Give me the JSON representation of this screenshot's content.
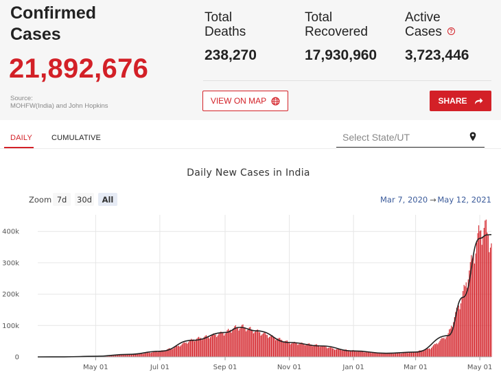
{
  "summary": {
    "confirmed_label": "Confirmed Cases",
    "confirmed_value": "21,892,676",
    "source_line1": "Source:",
    "source_line2": "MOHFW(India) and John Hopkins",
    "deaths_label_1": "Total",
    "deaths_label_2": "Deaths",
    "deaths_value": "238,270",
    "recovered_label_1": "Total",
    "recovered_label_2": "Recovered",
    "recovered_value": "17,930,960",
    "active_label_1": "Active",
    "active_label_2": "Cases",
    "active_value": "3,723,446",
    "info_symbol": "?"
  },
  "buttons": {
    "map_label": "VIEW ON MAP",
    "share_label": "SHARE"
  },
  "tabs": [
    {
      "label": "DAILY",
      "active": true
    },
    {
      "label": "CUMULATIVE",
      "active": false
    }
  ],
  "state_select": {
    "placeholder": "Select State/UT"
  },
  "colors": {
    "accent": "#d32027",
    "bar": "#d32027",
    "line": "#222222"
  },
  "icons": {
    "map": "globe-icon",
    "share": "share-arrow-icon",
    "state": "location-pin-icon",
    "info": "info-icon"
  },
  "chart_data": {
    "type": "bar",
    "title": "Daily New Cases in India",
    "zoom_label": "Zoom",
    "zoom_options": [
      "7d",
      "30d",
      "All"
    ],
    "zoom_selected": "All",
    "range_start": "Mar 7, 2020",
    "range_arrow": "→",
    "range_end": "May 12, 2021",
    "xlabel": "",
    "ylabel": "",
    "ylim": [
      0,
      430000
    ],
    "y_ticks": [
      0,
      100000,
      200000,
      300000,
      400000
    ],
    "y_tick_labels": [
      "0",
      "100k",
      "200k",
      "300k",
      "400k"
    ],
    "x_ticks": [
      "2020-05-01",
      "2020-07-01",
      "2020-09-01",
      "2020-11-01",
      "2021-01-01",
      "2021-03-01",
      "2021-05-01"
    ],
    "x_tick_labels": [
      "May 01",
      "Jul 01",
      "Sep 01",
      "Nov 01",
      "Jan 01",
      "Mar 01",
      "May 01"
    ],
    "x_range": [
      "2020-03-07",
      "2021-05-12"
    ],
    "grid": true,
    "legend": "none",
    "series": [
      {
        "type": "bar",
        "daily_values_weekly_samples": [
          {
            "date": "2020-03-07",
            "value": 5
          },
          {
            "date": "2020-03-21",
            "value": 100
          },
          {
            "date": "2020-04-04",
            "value": 500
          },
          {
            "date": "2020-04-18",
            "value": 1200
          },
          {
            "date": "2020-05-01",
            "value": 2000
          },
          {
            "date": "2020-05-15",
            "value": 4000
          },
          {
            "date": "2020-06-01",
            "value": 8000
          },
          {
            "date": "2020-06-15",
            "value": 11000
          },
          {
            "date": "2020-07-01",
            "value": 18000
          },
          {
            "date": "2020-07-15",
            "value": 30000
          },
          {
            "date": "2020-08-01",
            "value": 55000
          },
          {
            "date": "2020-08-15",
            "value": 65000
          },
          {
            "date": "2020-09-01",
            "value": 78000
          },
          {
            "date": "2020-09-10",
            "value": 93000
          },
          {
            "date": "2020-09-17",
            "value": 97000
          },
          {
            "date": "2020-10-01",
            "value": 82000
          },
          {
            "date": "2020-10-15",
            "value": 65000
          },
          {
            "date": "2020-11-01",
            "value": 46000
          },
          {
            "date": "2020-11-15",
            "value": 42000
          },
          {
            "date": "2020-12-01",
            "value": 36000
          },
          {
            "date": "2020-12-15",
            "value": 25000
          },
          {
            "date": "2021-01-01",
            "value": 20000
          },
          {
            "date": "2021-01-15",
            "value": 15000
          },
          {
            "date": "2021-02-01",
            "value": 11000
          },
          {
            "date": "2021-02-15",
            "value": 12000
          },
          {
            "date": "2021-03-01",
            "value": 16000
          },
          {
            "date": "2021-03-15",
            "value": 28000
          },
          {
            "date": "2021-04-01",
            "value": 72000
          },
          {
            "date": "2021-04-15",
            "value": 200000
          },
          {
            "date": "2021-05-01",
            "value": 401000
          },
          {
            "date": "2021-05-06",
            "value": 414000
          },
          {
            "date": "2021-05-12",
            "value": 362000
          }
        ]
      },
      {
        "type": "line",
        "smoothed_values": [
          {
            "date": "2020-03-07",
            "value": 0
          },
          {
            "date": "2020-04-01",
            "value": 300
          },
          {
            "date": "2020-05-01",
            "value": 2000
          },
          {
            "date": "2020-06-01",
            "value": 8000
          },
          {
            "date": "2020-07-01",
            "value": 18000
          },
          {
            "date": "2020-08-01",
            "value": 53000
          },
          {
            "date": "2020-09-01",
            "value": 78000
          },
          {
            "date": "2020-09-15",
            "value": 94000
          },
          {
            "date": "2020-10-01",
            "value": 83000
          },
          {
            "date": "2020-11-01",
            "value": 46000
          },
          {
            "date": "2020-12-01",
            "value": 35000
          },
          {
            "date": "2021-01-01",
            "value": 19000
          },
          {
            "date": "2021-02-01",
            "value": 11500
          },
          {
            "date": "2021-03-01",
            "value": 15500
          },
          {
            "date": "2021-04-01",
            "value": 68000
          },
          {
            "date": "2021-04-15",
            "value": 190000
          },
          {
            "date": "2021-05-01",
            "value": 378000
          },
          {
            "date": "2021-05-08",
            "value": 389000
          },
          {
            "date": "2021-05-12",
            "value": 390000
          }
        ]
      }
    ]
  }
}
